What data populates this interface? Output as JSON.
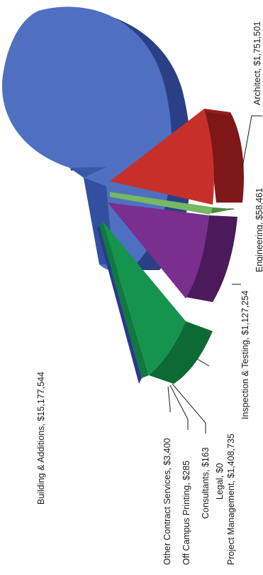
{
  "chart_data": {
    "type": "pie",
    "style": "3d-exploded",
    "orientation": "rotated-90-ccw",
    "slices": [
      {
        "label": "Building & Additions, $15,177,544",
        "name": "Building & Additions",
        "value": 15177544,
        "color": "#4f70c0"
      },
      {
        "label": "Architect, $1,751,501",
        "name": "Architect",
        "value": 1751501,
        "color": "#c0302a"
      },
      {
        "label": "Engineering, $58,461",
        "name": "Engineering",
        "value": 58461,
        "color": "#70b060"
      },
      {
        "label": "Inspection & Testing, $1,127,254",
        "name": "Inspection & Testing",
        "value": 1127254,
        "color": "#7a2e8e"
      },
      {
        "label": "Project Management, $1,408,735",
        "name": "Project Management",
        "value": 1408735,
        "color": "#12914a"
      },
      {
        "label": "Legal, $0",
        "name": "Legal",
        "value": 0,
        "color": "#12914a"
      },
      {
        "label": "Consultants, $163",
        "name": "Consultants",
        "value": 163,
        "color": "#12914a"
      },
      {
        "label": "Off Campus Printing, $285",
        "name": "Off Campus Printing",
        "value": 285,
        "color": "#12914a"
      },
      {
        "label": "Other Contract Services, $3,400",
        "name": "Other Contract Services",
        "value": 3400,
        "color": "#2a3a8a"
      }
    ]
  }
}
